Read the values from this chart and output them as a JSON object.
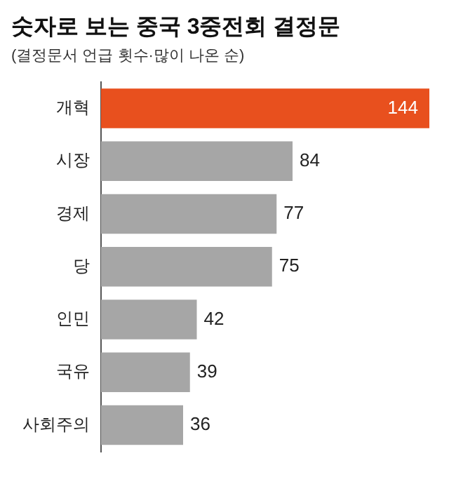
{
  "chart_data": {
    "type": "bar",
    "orientation": "horizontal",
    "title": "숫자로 보는 중국 3중전회 결정문",
    "subtitle": "(결정문서 언급 횟수·많이 나온 순)",
    "categories": [
      "개혁",
      "시장",
      "경제",
      "당",
      "인민",
      "국유",
      "사회주의"
    ],
    "values": [
      144,
      84,
      77,
      75,
      42,
      39,
      36
    ],
    "colors": [
      "#e8501e",
      "#a6a6a6",
      "#a6a6a6",
      "#a6a6a6",
      "#a6a6a6",
      "#a6a6a6",
      "#a6a6a6"
    ],
    "data_labels": true,
    "legend": false
  }
}
